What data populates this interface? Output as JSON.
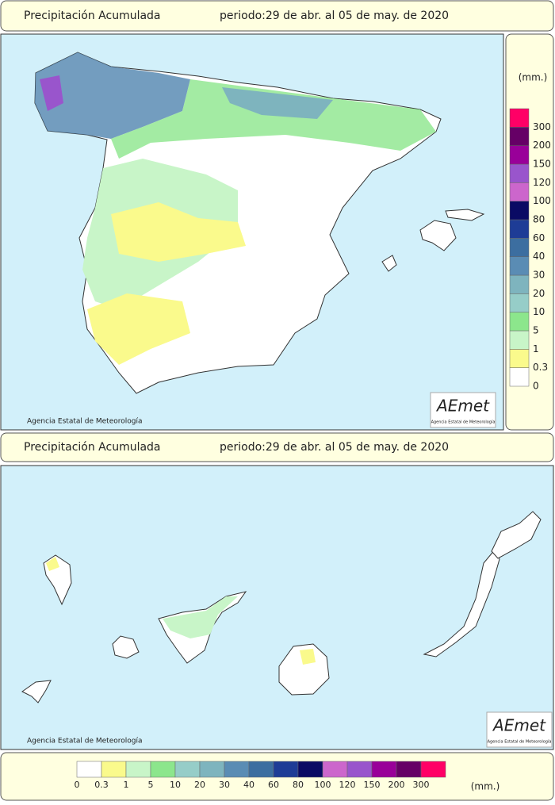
{
  "top_panel": {
    "title": "Precipitación Acumulada",
    "period": "periodo:29 de abr. al 05 de may. de 2020",
    "credit": "Agencia Estatal de Meteorología",
    "logo": {
      "name": "AEmet",
      "subtitle": "Agencia Estatal de Meteorología"
    }
  },
  "bottom_panel": {
    "title": "Precipitación Acumulada",
    "period": "periodo:29 de abr. al 05 de may. de 2020",
    "credit": "Agencia Estatal de Meteorología",
    "logo": {
      "name": "AEmet",
      "subtitle": "Agencia Estatal de Meteorología"
    }
  },
  "legend": {
    "unit": "(mm.)",
    "classes": [
      {
        "label": "0",
        "color": "#ffffff"
      },
      {
        "label": "0.3",
        "color": "#fafa8c"
      },
      {
        "label": "1",
        "color": "#c8f5c8"
      },
      {
        "label": "5",
        "color": "#8ce68c"
      },
      {
        "label": "10",
        "color": "#96cdc8"
      },
      {
        "label": "20",
        "color": "#7eb4be"
      },
      {
        "label": "30",
        "color": "#5a8cb4"
      },
      {
        "label": "40",
        "color": "#3c6ea0"
      },
      {
        "label": "60",
        "color": "#1e3c96"
      },
      {
        "label": "80",
        "color": "#0a0a64"
      },
      {
        "label": "100",
        "color": "#cc66cc"
      },
      {
        "label": "120",
        "color": "#9955cc"
      },
      {
        "label": "150",
        "color": "#990099"
      },
      {
        "label": "200",
        "color": "#660066"
      },
      {
        "label": "300",
        "color": "#ff0066"
      }
    ]
  }
}
